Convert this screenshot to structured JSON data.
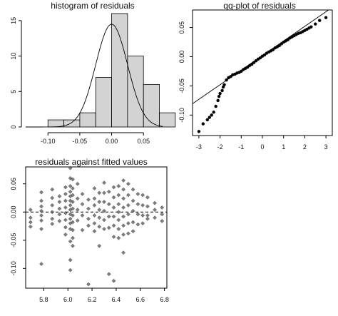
{
  "chart_data": [
    {
      "type": "bar",
      "title": "histogram of residuals",
      "xlabel": "",
      "ylabel": "",
      "xlim": [
        -0.135,
        0.08
      ],
      "ylim": [
        0,
        16.5
      ],
      "bins": [
        {
          "from": -0.125,
          "to": -0.1,
          "count": 0
        },
        {
          "from": -0.1,
          "to": -0.075,
          "count": 1
        },
        {
          "from": -0.075,
          "to": -0.05,
          "count": 1
        },
        {
          "from": -0.05,
          "to": -0.025,
          "count": 2
        },
        {
          "from": -0.025,
          "to": 0.0,
          "count": 7
        },
        {
          "from": 0.0,
          "to": 0.025,
          "count": 16
        },
        {
          "from": 0.025,
          "to": 0.05,
          "count": 10
        },
        {
          "from": 0.05,
          "to": 0.075,
          "count": 6
        },
        {
          "from": 0.075,
          "to": 0.1,
          "count": 2
        }
      ],
      "xticks": [
        "-0.10",
        "-0.05",
        "0.00",
        "0.05"
      ],
      "xtick_values": [
        -0.1,
        -0.05,
        0.0,
        0.05
      ],
      "yticks": [
        "0",
        "5",
        "10",
        "15"
      ],
      "ytick_values": [
        0,
        5,
        10,
        15
      ],
      "overlay": {
        "type": "normal_density",
        "mean": 0.0,
        "sd": 0.025,
        "peak_count": 14.5
      }
    },
    {
      "type": "scatter",
      "title": "qq-plot of residuals",
      "xlabel": "",
      "ylabel": "",
      "xlim": [
        -3.3,
        3.3
      ],
      "ylim": [
        -0.135,
        0.08
      ],
      "xticks": [
        "-3",
        "-2",
        "-1",
        "0",
        "1",
        "2",
        "3"
      ],
      "xtick_values": [
        -3,
        -2,
        -1,
        0,
        1,
        2,
        3
      ],
      "yticks": [
        "0.05",
        "0.00",
        "-0.05",
        "-0.10"
      ],
      "ytick_values": [
        0.05,
        0.0,
        -0.05,
        -0.1
      ],
      "reference_line": {
        "intercept": 0.002,
        "slope": 0.025
      },
      "points": [
        [
          -3.0,
          -0.128
        ],
        [
          -2.8,
          -0.115
        ],
        [
          -2.6,
          -0.108
        ],
        [
          -2.5,
          -0.104
        ],
        [
          -2.4,
          -0.1
        ],
        [
          -2.3,
          -0.095
        ],
        [
          -2.2,
          -0.085
        ],
        [
          -2.1,
          -0.075
        ],
        [
          -2.05,
          -0.068
        ],
        [
          -2.0,
          -0.063
        ],
        [
          -1.9,
          -0.058
        ],
        [
          -1.85,
          -0.052
        ],
        [
          -1.8,
          -0.048
        ],
        [
          -1.7,
          -0.04
        ],
        [
          -1.6,
          -0.036
        ],
        [
          -1.5,
          -0.034
        ],
        [
          -1.4,
          -0.031
        ],
        [
          -1.3,
          -0.03
        ],
        [
          -1.2,
          -0.028
        ],
        [
          -1.1,
          -0.027
        ],
        [
          -1.0,
          -0.025
        ],
        [
          -0.9,
          -0.022
        ],
        [
          -0.8,
          -0.02
        ],
        [
          -0.7,
          -0.018
        ],
        [
          -0.6,
          -0.015
        ],
        [
          -0.5,
          -0.013
        ],
        [
          -0.4,
          -0.01
        ],
        [
          -0.3,
          -0.007
        ],
        [
          -0.2,
          -0.004
        ],
        [
          -0.1,
          -0.002
        ],
        [
          0.0,
          0.001
        ],
        [
          0.1,
          0.003
        ],
        [
          0.2,
          0.006
        ],
        [
          0.3,
          0.008
        ],
        [
          0.4,
          0.01
        ],
        [
          0.5,
          0.012
        ],
        [
          0.6,
          0.015
        ],
        [
          0.7,
          0.017
        ],
        [
          0.8,
          0.019
        ],
        [
          0.9,
          0.022
        ],
        [
          1.0,
          0.025
        ],
        [
          1.1,
          0.027
        ],
        [
          1.2,
          0.029
        ],
        [
          1.3,
          0.032
        ],
        [
          1.4,
          0.034
        ],
        [
          1.5,
          0.036
        ],
        [
          1.6,
          0.038
        ],
        [
          1.7,
          0.04
        ],
        [
          1.8,
          0.041
        ],
        [
          1.9,
          0.043
        ],
        [
          2.0,
          0.045
        ],
        [
          2.1,
          0.047
        ],
        [
          2.2,
          0.049
        ],
        [
          2.3,
          0.051
        ],
        [
          2.5,
          0.056
        ],
        [
          2.7,
          0.062
        ],
        [
          3.0,
          0.067
        ]
      ]
    },
    {
      "type": "scatter",
      "title": "residuals against fitted values",
      "xlabel": "",
      "ylabel": "",
      "xlim": [
        5.65,
        6.82
      ],
      "ylim": [
        -0.135,
        0.08
      ],
      "xticks": [
        "5.8",
        "6.0",
        "6.2",
        "6.4",
        "6.6",
        "6.8"
      ],
      "xtick_values": [
        5.8,
        6.0,
        6.2,
        6.4,
        6.6,
        6.8
      ],
      "yticks": [
        "0.05",
        "0.00",
        "-0.05",
        "-0.10"
      ],
      "ytick_values": [
        0.05,
        0.0,
        -0.05,
        -0.1
      ],
      "reference_hline": 0.0,
      "points": [
        [
          5.69,
          0.004
        ],
        [
          5.69,
          -0.01
        ],
        [
          5.69,
          -0.018
        ],
        [
          5.69,
          -0.026
        ],
        [
          5.78,
          0.035
        ],
        [
          5.78,
          0.02
        ],
        [
          5.78,
          0.01
        ],
        [
          5.78,
          0.002
        ],
        [
          5.78,
          -0.006
        ],
        [
          5.78,
          -0.015
        ],
        [
          5.78,
          -0.03
        ],
        [
          5.78,
          -0.092
        ],
        [
          5.87,
          0.04
        ],
        [
          5.87,
          0.025
        ],
        [
          5.87,
          0.012
        ],
        [
          5.87,
          0.0
        ],
        [
          5.87,
          -0.012
        ],
        [
          5.87,
          -0.021
        ],
        [
          5.93,
          0.028
        ],
        [
          5.93,
          0.018
        ],
        [
          5.93,
          0.006
        ],
        [
          5.93,
          -0.004
        ],
        [
          5.93,
          -0.016
        ],
        [
          5.98,
          0.044
        ],
        [
          5.98,
          0.032
        ],
        [
          5.98,
          0.02
        ],
        [
          5.98,
          0.008
        ],
        [
          5.98,
          -0.002
        ],
        [
          5.98,
          -0.014
        ],
        [
          5.98,
          -0.027
        ],
        [
          5.98,
          -0.04
        ],
        [
          6.02,
          0.078
        ],
        [
          6.02,
          0.06
        ],
        [
          6.02,
          0.046
        ],
        [
          6.02,
          0.036
        ],
        [
          6.02,
          0.028
        ],
        [
          6.02,
          0.02
        ],
        [
          6.02,
          0.012
        ],
        [
          6.02,
          0.004
        ],
        [
          6.02,
          -0.004
        ],
        [
          6.02,
          -0.012
        ],
        [
          6.02,
          -0.02
        ],
        [
          6.02,
          -0.03
        ],
        [
          6.02,
          -0.052
        ],
        [
          6.02,
          -0.085
        ],
        [
          6.02,
          -0.103
        ],
        [
          6.04,
          0.058
        ],
        [
          6.04,
          0.042
        ],
        [
          6.04,
          0.03
        ],
        [
          6.04,
          0.018
        ],
        [
          6.04,
          0.006
        ],
        [
          6.04,
          -0.006
        ],
        [
          6.04,
          -0.018
        ],
        [
          6.04,
          -0.032
        ],
        [
          6.04,
          -0.046
        ],
        [
          6.04,
          -0.06
        ],
        [
          6.08,
          0.05
        ],
        [
          6.08,
          0.024
        ],
        [
          6.08,
          0.004
        ],
        [
          6.08,
          -0.015
        ],
        [
          6.12,
          0.032
        ],
        [
          6.12,
          0.014
        ],
        [
          6.12,
          -0.006
        ],
        [
          6.12,
          -0.032
        ],
        [
          6.17,
          0.022
        ],
        [
          6.17,
          0.006
        ],
        [
          6.17,
          -0.012
        ],
        [
          6.17,
          -0.024
        ],
        [
          6.17,
          -0.128
        ],
        [
          6.22,
          0.042
        ],
        [
          6.22,
          0.024
        ],
        [
          6.22,
          0.012
        ],
        [
          6.22,
          -0.006
        ],
        [
          6.22,
          -0.02
        ],
        [
          6.22,
          -0.034
        ],
        [
          6.26,
          0.034
        ],
        [
          6.26,
          0.018
        ],
        [
          6.26,
          0.004
        ],
        [
          6.26,
          -0.01
        ],
        [
          6.26,
          -0.026
        ],
        [
          6.26,
          -0.06
        ],
        [
          6.3,
          0.052
        ],
        [
          6.3,
          0.034
        ],
        [
          6.3,
          0.018
        ],
        [
          6.3,
          0.002
        ],
        [
          6.3,
          -0.014
        ],
        [
          6.3,
          -0.03
        ],
        [
          6.34,
          0.036
        ],
        [
          6.34,
          0.014
        ],
        [
          6.34,
          -0.008
        ],
        [
          6.34,
          -0.028
        ],
        [
          6.34,
          -0.11
        ],
        [
          6.38,
          0.044
        ],
        [
          6.38,
          0.026
        ],
        [
          6.38,
          0.008
        ],
        [
          6.38,
          -0.008
        ],
        [
          6.38,
          -0.024
        ],
        [
          6.38,
          -0.044
        ],
        [
          6.38,
          -0.122
        ],
        [
          6.42,
          0.046
        ],
        [
          6.42,
          0.03
        ],
        [
          6.42,
          0.014
        ],
        [
          6.42,
          0.0
        ],
        [
          6.42,
          -0.014
        ],
        [
          6.42,
          -0.03
        ],
        [
          6.42,
          -0.046
        ],
        [
          6.46,
          0.056
        ],
        [
          6.46,
          0.04
        ],
        [
          6.46,
          0.024
        ],
        [
          6.46,
          0.008
        ],
        [
          6.46,
          -0.008
        ],
        [
          6.46,
          -0.024
        ],
        [
          6.46,
          -0.04
        ],
        [
          6.46,
          -0.072
        ],
        [
          6.5,
          0.05
        ],
        [
          6.5,
          0.03
        ],
        [
          6.5,
          0.012
        ],
        [
          6.5,
          -0.004
        ],
        [
          6.5,
          -0.02
        ],
        [
          6.5,
          -0.038
        ],
        [
          6.54,
          0.04
        ],
        [
          6.54,
          0.02
        ],
        [
          6.54,
          0.002
        ],
        [
          6.54,
          -0.018
        ],
        [
          6.54,
          -0.034
        ],
        [
          6.58,
          0.032
        ],
        [
          6.58,
          0.014
        ],
        [
          6.58,
          -0.004
        ],
        [
          6.58,
          -0.022
        ],
        [
          6.62,
          0.03
        ],
        [
          6.62,
          0.012
        ],
        [
          6.62,
          -0.006
        ],
        [
          6.62,
          -0.02
        ],
        [
          6.66,
          0.026
        ],
        [
          6.66,
          0.01
        ],
        [
          6.66,
          -0.006
        ],
        [
          6.66,
          -0.012
        ],
        [
          6.72,
          0.016
        ],
        [
          6.72,
          0.004
        ],
        [
          6.72,
          -0.01
        ],
        [
          6.78,
          0.008
        ],
        [
          6.78,
          -0.004
        ],
        [
          6.78,
          -0.016
        ]
      ]
    }
  ]
}
